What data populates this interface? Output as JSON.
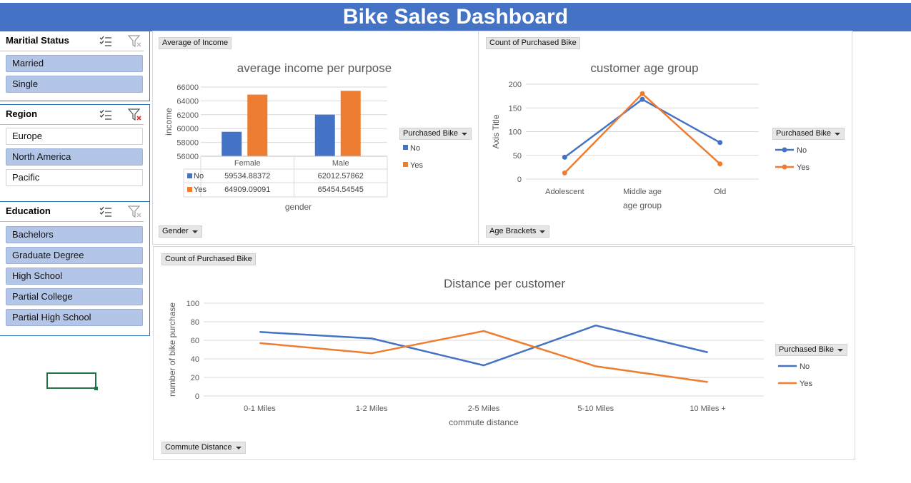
{
  "dashboard": {
    "title": "Bike Sales Dashboard"
  },
  "colors": {
    "no": "#4472c4",
    "yes": "#ed7d31",
    "header": "#4472c4",
    "slicer_selected": "#b4c6e7"
  },
  "slicers": {
    "marital": {
      "title": "Maritial Status",
      "items": [
        {
          "label": "Married",
          "selected": true
        },
        {
          "label": "Single",
          "selected": true
        }
      ]
    },
    "region": {
      "title": "Region",
      "items": [
        {
          "label": "Europe",
          "selected": false
        },
        {
          "label": "North America",
          "selected": true
        },
        {
          "label": "Pacific",
          "selected": false
        }
      ]
    },
    "education": {
      "title": "Education",
      "items": [
        {
          "label": "Bachelors",
          "selected": true
        },
        {
          "label": "Graduate Degree",
          "selected": true
        },
        {
          "label": "High School",
          "selected": true
        },
        {
          "label": "Partial College",
          "selected": true
        },
        {
          "label": "Partial High School",
          "selected": true
        }
      ]
    }
  },
  "chart_buttons": {
    "income_value": "Average of Income",
    "income_axis": "Gender",
    "income_legend": "Purchased Bike",
    "age_value": "Count of Purchased Bike",
    "age_axis": "Age Brackets",
    "age_legend": "Purchased Bike",
    "distance_value": "Count of Purchased Bike",
    "distance_axis": "Commute Distance",
    "distance_legend": "Purchased Bike"
  },
  "chart_data": [
    {
      "type": "bar",
      "title": "average income per purpose",
      "xlabel": "gender",
      "ylabel": "income",
      "categories": [
        "Female",
        "Male"
      ],
      "series": [
        {
          "name": "No",
          "values": [
            59534.88372,
            62012.57862
          ],
          "labels": [
            "59534.88372",
            "62012.57862"
          ]
        },
        {
          "name": "Yes",
          "values": [
            64909.09091,
            65454.54545
          ],
          "labels": [
            "64909.09091",
            "65454.54545"
          ]
        }
      ],
      "ylim": [
        56000,
        66000
      ],
      "yticks": [
        "66000",
        "64000",
        "62000",
        "60000",
        "58000",
        "56000"
      ],
      "data_table": true,
      "legend_position": "right"
    },
    {
      "type": "line",
      "title": "customer age group",
      "xlabel": "age group",
      "ylabel": "Axis Title",
      "categories": [
        "Adolescent",
        "Middle age",
        "Old"
      ],
      "series": [
        {
          "name": "No",
          "values": [
            46,
            168,
            77
          ]
        },
        {
          "name": "Yes",
          "values": [
            13,
            180,
            32
          ]
        }
      ],
      "ylim": [
        0,
        200
      ],
      "yticks": [
        "200",
        "150",
        "100",
        "50",
        "0"
      ],
      "markers": true,
      "legend_position": "right"
    },
    {
      "type": "line",
      "title": "Distance per customer",
      "xlabel": "commute distance",
      "ylabel": "number of bike purchase",
      "categories": [
        "0-1 Miles",
        "1-2 Miles",
        "2-5 Miles",
        "5-10 Miles",
        "10 Miles +"
      ],
      "series": [
        {
          "name": "No",
          "values": [
            69,
            62,
            33,
            76,
            47
          ]
        },
        {
          "name": "Yes",
          "values": [
            57,
            46,
            70,
            32,
            15
          ]
        }
      ],
      "ylim": [
        0,
        100
      ],
      "yticks": [
        "100",
        "80",
        "60",
        "40",
        "20",
        "0"
      ],
      "markers": false,
      "legend_position": "right"
    }
  ]
}
